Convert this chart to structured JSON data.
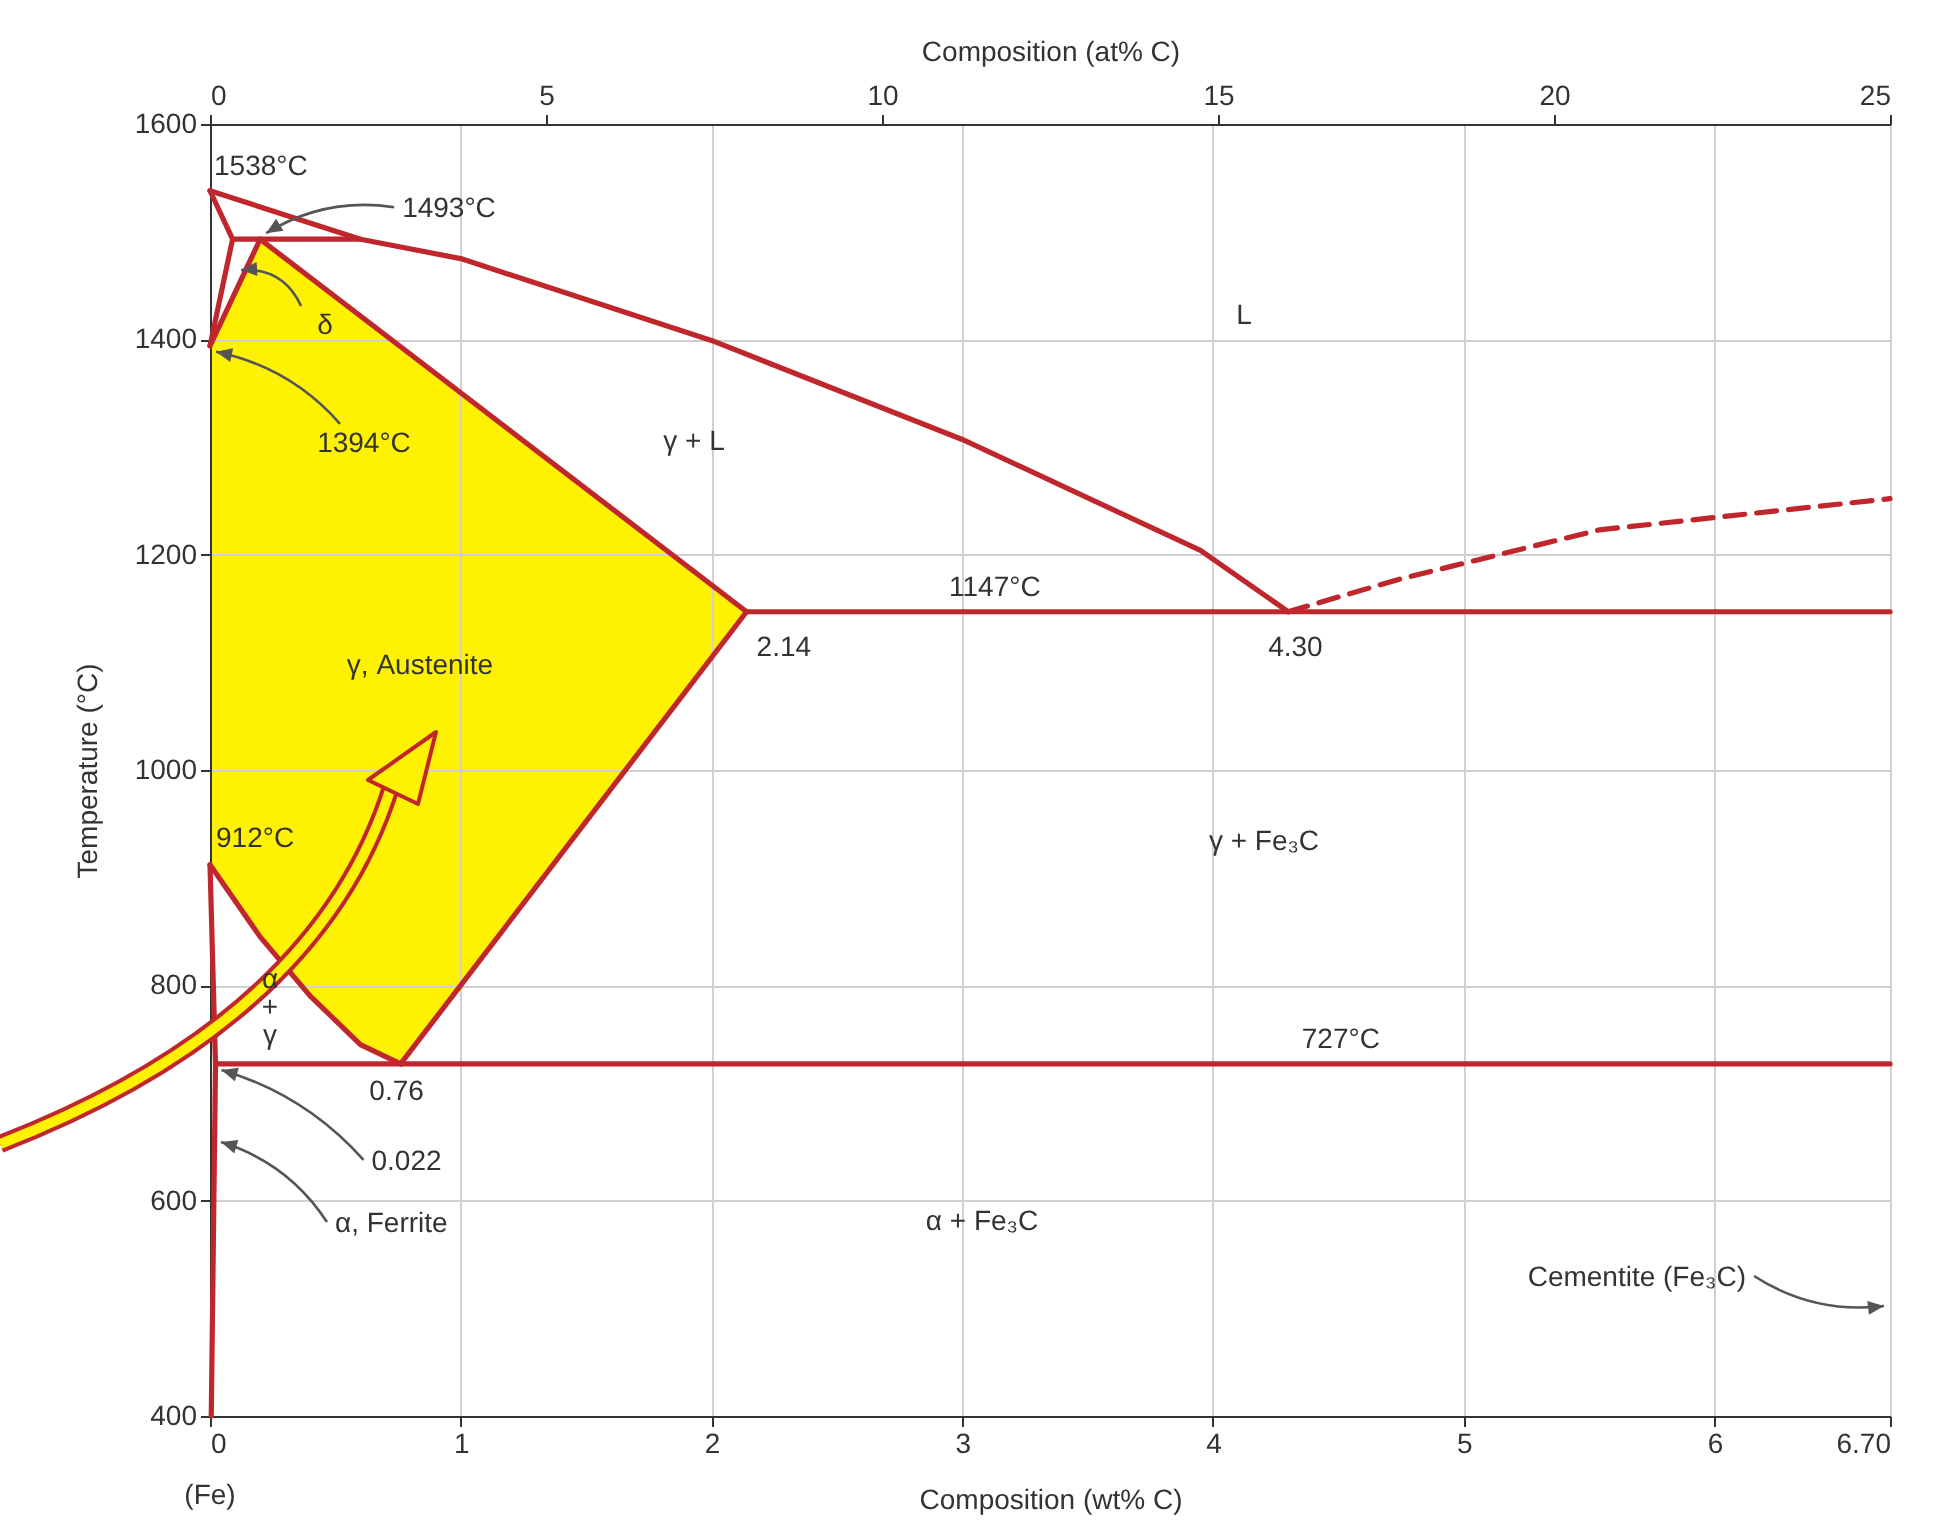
{
  "chart_data": {
    "type": "line",
    "xlabel": "Composition (wt% C)",
    "ylabel": "Temperature (°C)",
    "x2label": "Composition (at% C)",
    "xlim": [
      0,
      6.7
    ],
    "xticks": [
      0,
      1,
      2,
      3,
      4,
      5,
      6,
      {
        "value": 6.7,
        "label": "6.70"
      }
    ],
    "ylim": [
      400,
      1600
    ],
    "yticks": [
      400,
      600,
      800,
      1000,
      1200,
      1400,
      1600
    ],
    "x2lim": [
      0,
      25
    ],
    "x2ticks": [
      0,
      5,
      10,
      15,
      20,
      25
    ],
    "grid": true,
    "series": [
      {
        "color": "#c0272d",
        "line_style": "solid",
        "x": [
          0,
          0.6,
          1,
          2,
          3,
          3.95,
          4.3
        ],
        "values": [
          1538,
          1493,
          1475,
          1399,
          1307,
          1204,
          1147
        ]
      },
      {
        "color": "#c0272d",
        "line_style": "solid",
        "x": [
          0,
          0.09
        ],
        "values": [
          1538,
          1493
        ]
      },
      {
        "color": "#c0272d",
        "line_style": "solid",
        "x": [
          0,
          0.09
        ],
        "values": [
          1394,
          1493
        ]
      },
      {
        "color": "#c0272d",
        "line_style": "solid",
        "x": [
          0,
          0.2
        ],
        "values": [
          1394,
          1493
        ]
      },
      {
        "color": "#c0272d",
        "line_style": "solid",
        "x": [
          0.09,
          0.6
        ],
        "values": [
          1493,
          1493
        ]
      },
      {
        "color": "#c0272d",
        "line_style": "solid",
        "x": [
          0.2,
          2.14
        ],
        "values": [
          1493,
          1147
        ]
      },
      {
        "color": "#c0272d",
        "line_style": "solid",
        "x": [
          2.14,
          0.76
        ],
        "values": [
          1147,
          727
        ]
      },
      {
        "color": "#c0272d",
        "line_style": "solid",
        "x": [
          0,
          0.2,
          0.4,
          0.6,
          0.76
        ],
        "values": [
          912,
          845,
          790,
          745,
          727
        ]
      },
      {
        "color": "#c0272d",
        "line_style": "solid",
        "x": [
          0,
          0.022,
          0.005
        ],
        "values": [
          912,
          727,
          400
        ]
      },
      {
        "color": "#c0272d",
        "line_style": "solid",
        "x": [
          2.14,
          6.7
        ],
        "values": [
          1147,
          1147
        ]
      },
      {
        "color": "#c0272d",
        "line_style": "solid",
        "x": [
          0.022,
          6.7
        ],
        "values": [
          727,
          727
        ]
      },
      {
        "color": "#c0272d",
        "line_style": "dashed",
        "x": [
          4.3,
          4.74,
          5.54,
          6.7
        ],
        "values": [
          1147,
          1177,
          1223,
          1252
        ]
      }
    ],
    "annotations": [
      {
        "text": "1538°C",
        "x": 0,
        "y": 1538
      },
      {
        "text": "1493°C",
        "x": 0.2,
        "y": 1493
      },
      {
        "text": "δ",
        "x": 0.1,
        "y": 1470
      },
      {
        "text": "1394°C",
        "x": 0,
        "y": 1394
      },
      {
        "text": "912°C",
        "x": 0,
        "y": 912
      },
      {
        "text": "2.14",
        "x": 2.14,
        "y": 1147
      },
      {
        "text": "4.30",
        "x": 4.3,
        "y": 1147
      },
      {
        "text": "0.76",
        "x": 0.76,
        "y": 727
      },
      {
        "text": "0.022",
        "x": 0.022,
        "y": 727
      },
      {
        "text": "α, Ferrite",
        "x": 0.02,
        "y": 660
      },
      {
        "text": "1147°C",
        "x": 3.13,
        "y": 1147
      },
      {
        "text": "727°C",
        "x": 4.51,
        "y": 727
      },
      "Cementite (Fe₃C)",
      "L",
      "γ + L",
      "γ + Fe₃C",
      "α + Fe₃C",
      "α",
      "+",
      "γ",
      "(Fe)",
      "γ, Austenite"
    ]
  }
}
